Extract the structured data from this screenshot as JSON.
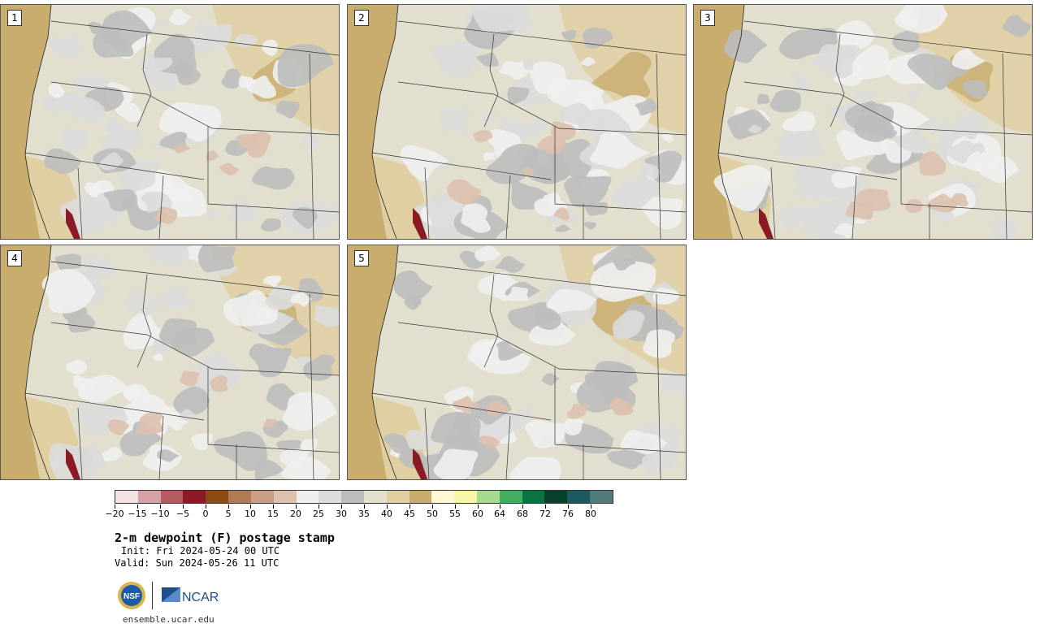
{
  "panels": [
    {
      "label": "1"
    },
    {
      "label": "2"
    },
    {
      "label": "3"
    },
    {
      "label": "4"
    },
    {
      "label": "5"
    }
  ],
  "colorbar": {
    "colors": [
      "#f2e2e2",
      "#d4a2a5",
      "#b35c62",
      "#8c1a25",
      "#8c4a14",
      "#b07a55",
      "#c89e86",
      "#ddc0ad",
      "#efefef",
      "#dcdcdc",
      "#bdbdbd",
      "#e3e0cf",
      "#e0cfa2",
      "#c8ad6e",
      "#fff9d3",
      "#f7f5a8",
      "#a6db8f",
      "#45ad62",
      "#0a7344",
      "#063f2c",
      "#1b5a5e",
      "#517a7a"
    ],
    "tick_labels": [
      "−20",
      "−15",
      "−10",
      "−5",
      "0",
      "5",
      "10",
      "15",
      "20",
      "25",
      "30",
      "35",
      "40",
      "45",
      "50",
      "55",
      "60",
      "64",
      "68",
      "72",
      "76",
      "80"
    ]
  },
  "title": "2-m dewpoint (F) postage stamp",
  "init": "Init: Fri 2024-05-24 00 UTC",
  "valid": "Valid: Sun 2024-05-26 11 UTC",
  "logos": {
    "nsf": "NSF",
    "ncar": "NCAR"
  },
  "site": "ensemble.ucar.edu",
  "map_colors": {
    "ocean": "#c8ad6e",
    "land_base": "#e2dfcf",
    "gray_light": "#efefef",
    "gray_mid": "#dcdcdc",
    "gray_dark": "#bdbdbd",
    "tan": "#e0cfa2",
    "tan_dark": "#c8ad6e",
    "pink": "#ddc0ad",
    "brown": "#8c1a25"
  }
}
